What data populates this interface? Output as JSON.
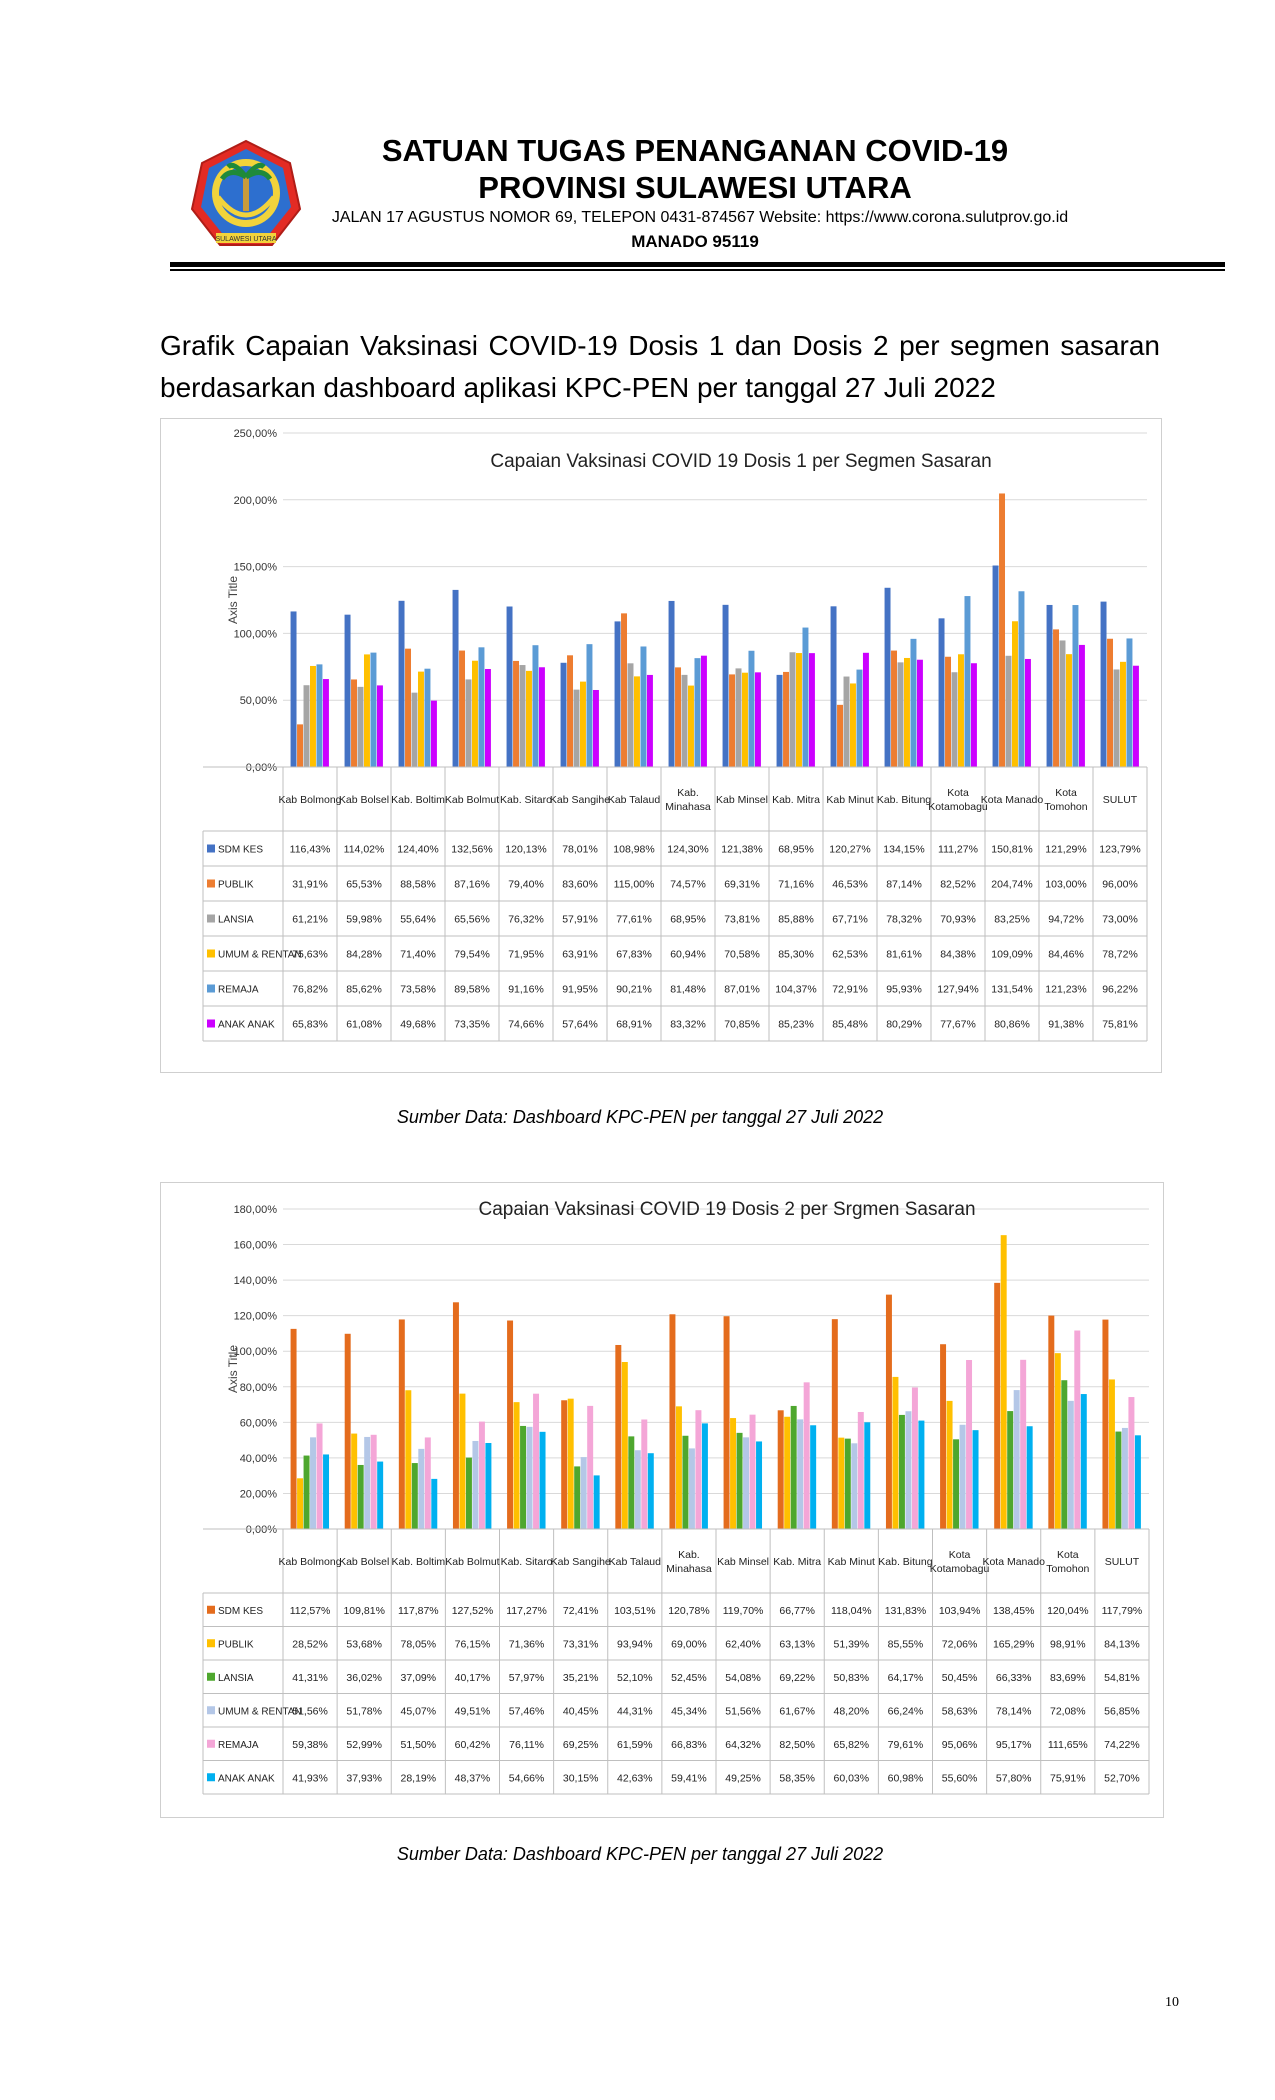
{
  "header": {
    "title_line1": "SATUAN TUGAS PENANGANAN COVID-19",
    "title_line2": "PROVINSI SULAWESI UTARA",
    "address": "JALAN 17 AGUSTUS NOMOR 69, TELEPON 0431-874567 Website: https://www.corona.sulutprov.go.id",
    "city": "MANADO  95119",
    "logo_text": "SULAWESI UTARA"
  },
  "intro": "Grafik Capaian Vaksinasi COVID-19 Dosis 1 dan Dosis 2 per segmen sasaran berdasarkan dashboard aplikasi KPC-PEN per tanggal 27 Juli 2022",
  "captions": {
    "chart1": "Sumber Data: Dashboard KPC-PEN per tanggal 27 Juli 2022",
    "chart2": "Sumber Data: Dashboard KPC-PEN per tanggal 27  Juli 2022"
  },
  "page_number": "10",
  "chart_data": [
    {
      "type": "bar",
      "title": "Capaian Vaksinasi COVID 19 Dosis 1 per Segmen Sasaran",
      "ylabel": "Axis Title",
      "ylim": [
        0,
        250
      ],
      "yticks": [
        "0,00%",
        "50,00%",
        "100,00%",
        "150,00%",
        "200,00%",
        "250,00%"
      ],
      "categories": [
        "Kab Bolmong",
        "Kab Bolsel",
        "Kab. Boltim",
        "Kab Bolmut",
        "Kab. Sitaro",
        "Kab Sangihe",
        "Kab Talaud",
        "Kab. Minahasa",
        "Kab Minsel",
        "Kab. Mitra",
        "Kab Minut",
        "Kab. Bitung",
        "Kota Kotamobagu",
        "Kota Manado",
        "Kota Tomohon",
        "SULUT"
      ],
      "series": [
        {
          "name": "SDM KES",
          "color": "#4472c4",
          "values": [
            116.43,
            114.02,
            124.4,
            132.56,
            120.13,
            78.01,
            108.98,
            124.3,
            121.38,
            68.95,
            120.27,
            134.15,
            111.27,
            150.81,
            121.29,
            123.79
          ],
          "labels": [
            "116,43%",
            "114,02%",
            "124,40%",
            "132,56%",
            "120,13%",
            "78,01%",
            "108,98%",
            "124,30%",
            "121,38%",
            "68,95%",
            "120,27%",
            "134,15%",
            "111,27%",
            "150,81%",
            "121,29%",
            "123,79%"
          ]
        },
        {
          "name": "PUBLIK",
          "color": "#ed7d31",
          "values": [
            31.91,
            65.53,
            88.58,
            87.16,
            79.4,
            83.6,
            115.0,
            74.57,
            69.31,
            71.16,
            46.53,
            87.14,
            82.52,
            204.74,
            103.0,
            96.0
          ],
          "labels": [
            "31,91%",
            "65,53%",
            "88,58%",
            "87,16%",
            "79,40%",
            "83,60%",
            "115,00%",
            "74,57%",
            "69,31%",
            "71,16%",
            "46,53%",
            "87,14%",
            "82,52%",
            "204,74%",
            "103,00%",
            "96,00%"
          ]
        },
        {
          "name": "LANSIA",
          "color": "#a5a5a5",
          "values": [
            61.21,
            59.98,
            55.64,
            65.56,
            76.32,
            57.91,
            77.61,
            68.95,
            73.81,
            85.88,
            67.71,
            78.32,
            70.93,
            83.25,
            94.72,
            73.0
          ],
          "labels": [
            "61,21%",
            "59,98%",
            "55,64%",
            "65,56%",
            "76,32%",
            "57,91%",
            "77,61%",
            "68,95%",
            "73,81%",
            "85,88%",
            "67,71%",
            "78,32%",
            "70,93%",
            "83,25%",
            "94,72%",
            "73,00%"
          ]
        },
        {
          "name": "UMUM & RENTAN",
          "color": "#ffc000",
          "values": [
            75.63,
            84.28,
            71.4,
            79.54,
            71.95,
            63.91,
            67.83,
            60.94,
            70.58,
            85.3,
            62.53,
            81.61,
            84.38,
            109.09,
            84.46,
            78.72
          ],
          "labels": [
            "75,63%",
            "84,28%",
            "71,40%",
            "79,54%",
            "71,95%",
            "63,91%",
            "67,83%",
            "60,94%",
            "70,58%",
            "85,30%",
            "62,53%",
            "81,61%",
            "84,38%",
            "109,09%",
            "84,46%",
            "78,72%"
          ]
        },
        {
          "name": "REMAJA",
          "color": "#5b9bd5",
          "values": [
            76.82,
            85.62,
            73.58,
            89.58,
            91.16,
            91.95,
            90.21,
            81.48,
            87.01,
            104.37,
            72.91,
            95.93,
            127.94,
            131.54,
            121.23,
            96.22
          ],
          "labels": [
            "76,82%",
            "85,62%",
            "73,58%",
            "89,58%",
            "91,16%",
            "91,95%",
            "90,21%",
            "81,48%",
            "87,01%",
            "104,37%",
            "72,91%",
            "95,93%",
            "127,94%",
            "131,54%",
            "121,23%",
            "96,22%"
          ]
        },
        {
          "name": "ANAK ANAK",
          "color": "#cc00ff",
          "values": [
            65.83,
            61.08,
            49.68,
            73.35,
            74.66,
            57.64,
            68.91,
            83.32,
            70.85,
            85.23,
            85.48,
            80.29,
            77.67,
            80.86,
            91.38,
            75.81
          ],
          "labels": [
            "65,83%",
            "61,08%",
            "49,68%",
            "73,35%",
            "74,66%",
            "57,64%",
            "68,91%",
            "83,32%",
            "70,85%",
            "85,23%",
            "85,48%",
            "80,29%",
            "77,67%",
            "80,86%",
            "91,38%",
            "75,81%"
          ]
        }
      ]
    },
    {
      "type": "bar",
      "title": "Capaian Vaksinasi COVID 19 Dosis 2 per Srgmen Sasaran",
      "ylabel": "Axis Title",
      "ylim": [
        0,
        180
      ],
      "yticks": [
        "0,00%",
        "20,00%",
        "40,00%",
        "60,00%",
        "80,00%",
        "100,00%",
        "120,00%",
        "140,00%",
        "160,00%",
        "180,00%"
      ],
      "categories": [
        "Kab Bolmong",
        "Kab Bolsel",
        "Kab. Boltim",
        "Kab Bolmut",
        "Kab. Sitaro",
        "Kab Sangihe",
        "Kab Talaud",
        "Kab. Minahasa",
        "Kab Minsel",
        "Kab. Mitra",
        "Kab Minut",
        "Kab. Bitung",
        "Kota Kotamobagu",
        "Kota Manado",
        "Kota Tomohon",
        "SULUT"
      ],
      "series": [
        {
          "name": "SDM KES",
          "color": "#e46c1d",
          "values": [
            112.57,
            109.81,
            117.87,
            127.52,
            117.27,
            72.41,
            103.51,
            120.78,
            119.7,
            66.77,
            118.04,
            131.83,
            103.94,
            138.45,
            120.04,
            117.79
          ],
          "labels": [
            "112,57%",
            "109,81%",
            "117,87%",
            "127,52%",
            "117,27%",
            "72,41%",
            "103,51%",
            "120,78%",
            "119,70%",
            "66,77%",
            "118,04%",
            "131,83%",
            "103,94%",
            "138,45%",
            "120,04%",
            "117,79%"
          ]
        },
        {
          "name": "PUBLIK",
          "color": "#ffc000",
          "values": [
            28.52,
            53.68,
            78.05,
            76.15,
            71.36,
            73.31,
            93.94,
            69.0,
            62.4,
            63.13,
            51.39,
            85.55,
            72.06,
            165.29,
            98.91,
            84.13
          ],
          "labels": [
            "28,52%",
            "53,68%",
            "78,05%",
            "76,15%",
            "71,36%",
            "73,31%",
            "93,94%",
            "69,00%",
            "62,40%",
            "63,13%",
            "51,39%",
            "85,55%",
            "72,06%",
            "165,29%",
            "98,91%",
            "84,13%"
          ]
        },
        {
          "name": "LANSIA",
          "color": "#4ea72e",
          "values": [
            41.31,
            36.02,
            37.09,
            40.17,
            57.97,
            35.21,
            52.1,
            52.45,
            54.08,
            69.22,
            50.83,
            64.17,
            50.45,
            66.33,
            83.69,
            54.81
          ],
          "labels": [
            "41,31%",
            "36,02%",
            "37,09%",
            "40,17%",
            "57,97%",
            "35,21%",
            "52,10%",
            "52,45%",
            "54,08%",
            "69,22%",
            "50,83%",
            "64,17%",
            "50,45%",
            "66,33%",
            "83,69%",
            "54,81%"
          ]
        },
        {
          "name": "UMUM & RENTAN",
          "color": "#b4c7e7",
          "values": [
            51.56,
            51.78,
            45.07,
            49.51,
            57.46,
            40.45,
            44.31,
            45.34,
            51.56,
            61.67,
            48.2,
            66.24,
            58.63,
            78.14,
            72.08,
            56.85
          ],
          "labels": [
            "51,56%",
            "51,78%",
            "45,07%",
            "49,51%",
            "57,46%",
            "40,45%",
            "44,31%",
            "45,34%",
            "51,56%",
            "61,67%",
            "48,20%",
            "66,24%",
            "58,63%",
            "78,14%",
            "72,08%",
            "56,85%"
          ]
        },
        {
          "name": "REMAJA",
          "color": "#f4a6d7",
          "values": [
            59.38,
            52.99,
            51.5,
            60.42,
            76.11,
            69.25,
            61.59,
            66.83,
            64.32,
            82.5,
            65.82,
            79.61,
            95.06,
            95.17,
            111.65,
            74.22
          ],
          "labels": [
            "59,38%",
            "52,99%",
            "51,50%",
            "60,42%",
            "76,11%",
            "69,25%",
            "61,59%",
            "66,83%",
            "64,32%",
            "82,50%",
            "65,82%",
            "79,61%",
            "95,06%",
            "95,17%",
            "111,65%",
            "74,22%"
          ]
        },
        {
          "name": "ANAK ANAK",
          "color": "#00b0f0",
          "values": [
            41.93,
            37.93,
            28.19,
            48.37,
            54.66,
            30.15,
            42.63,
            59.41,
            49.25,
            58.35,
            60.03,
            60.98,
            55.6,
            57.8,
            75.91,
            52.7
          ],
          "labels": [
            "41,93%",
            "37,93%",
            "28,19%",
            "48,37%",
            "54,66%",
            "30,15%",
            "42,63%",
            "59,41%",
            "49,25%",
            "58,35%",
            "60,03%",
            "60,98%",
            "55,60%",
            "57,80%",
            "75,91%",
            "52,70%"
          ]
        }
      ]
    }
  ]
}
